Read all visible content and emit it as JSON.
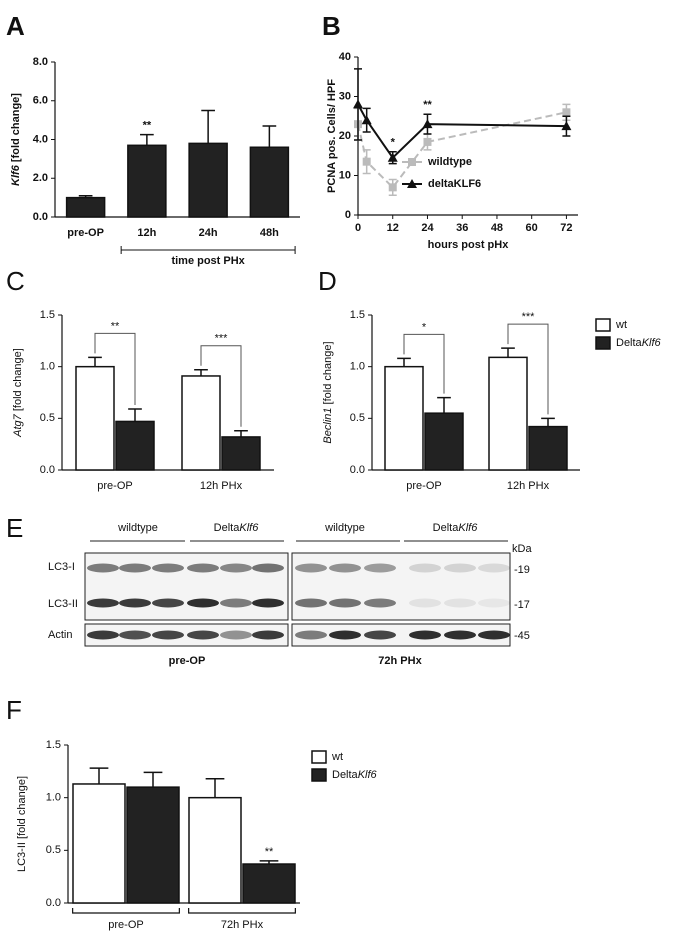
{
  "chart_data": [
    {
      "panel": "A",
      "type": "bar",
      "y_label": [
        "Klf6",
        " [fold change]"
      ],
      "categories": [
        "pre-OP",
        "12h",
        "24h",
        "48h"
      ],
      "values": [
        1.0,
        3.7,
        3.8,
        3.6
      ],
      "errors": [
        0.1,
        0.55,
        1.7,
        1.1
      ],
      "color": "#222222",
      "ylim": [
        0,
        8
      ],
      "yticks": [
        {
          "value": 0,
          "label": "0.0"
        },
        {
          "value": 2,
          "label": "2.0"
        },
        {
          "value": 4,
          "label": "4.0"
        },
        {
          "value": 6,
          "label": "6.0"
        },
        {
          "value": 8,
          "label": "8.0"
        }
      ],
      "annotations": [
        {
          "text": "**",
          "category": 1
        }
      ],
      "x_group_label": {
        "text": "time post PHx",
        "from": 1,
        "to": 3
      }
    },
    {
      "panel": "B",
      "type": "line",
      "y_label": "PCNA pos. Cells/ HPF",
      "x_label": "hours post pHx",
      "x": [
        0,
        3,
        12,
        24,
        72
      ],
      "xlim": [
        0,
        76
      ],
      "xticks": [
        0,
        12,
        24,
        36,
        48,
        60,
        72
      ],
      "ylim": [
        0,
        40
      ],
      "yticks": [
        0,
        10,
        20,
        30,
        40
      ],
      "series": [
        {
          "name": "wildtype",
          "color": "#bbbbbb",
          "dashed": true,
          "marker": "square",
          "values": [
            23,
            13.5,
            7,
            18.5,
            26
          ],
          "errors": [
            4,
            3,
            2,
            2,
            2
          ]
        },
        {
          "name": "deltaKLF6",
          "color": "#111111",
          "dashed": false,
          "marker": "triangle",
          "values": [
            28,
            24,
            14.5,
            23,
            22.5
          ],
          "errors": [
            9,
            3,
            1.5,
            2.5,
            2.5
          ]
        }
      ],
      "annotations": [
        {
          "text": "*",
          "x": 12
        },
        {
          "text": "**",
          "x": 24
        }
      ],
      "legend": "right"
    },
    {
      "panel": "C",
      "type": "bar",
      "y_label": [
        "Atg7",
        " [fold change]"
      ],
      "categories": [
        "pre-OP",
        "12h PHx"
      ],
      "series": [
        {
          "color": "#ffffff",
          "values": [
            1.0,
            0.91
          ],
          "errors": [
            0.09,
            0.06
          ]
        },
        {
          "color": "#222222",
          "values": [
            0.47,
            0.32
          ],
          "errors": [
            0.12,
            0.06
          ]
        }
      ],
      "ylim": [
        0,
        1.5
      ],
      "yticks": [
        {
          "value": 0,
          "label": "0.0"
        },
        {
          "value": 0.5,
          "label": "0.5"
        },
        {
          "value": 1,
          "label": "1.0"
        },
        {
          "value": 1.5,
          "label": "1.5"
        }
      ],
      "annotations": [
        {
          "text": "**",
          "category": 0
        },
        {
          "text": "***",
          "category": 1
        }
      ]
    },
    {
      "panel": "D",
      "type": "bar",
      "y_label": [
        "Beclin1",
        " [fold change]"
      ],
      "categories": [
        "pre-OP",
        "12h PHx"
      ],
      "series": [
        {
          "name": "wt",
          "color": "#ffffff",
          "values": [
            1.0,
            1.09
          ],
          "errors": [
            0.08,
            0.09
          ]
        },
        {
          "name": [
            "Delta",
            "Klf6"
          ],
          "color": "#222222",
          "values": [
            0.55,
            0.42
          ],
          "errors": [
            0.15,
            0.08
          ]
        }
      ],
      "ylim": [
        0,
        1.5
      ],
      "yticks": [
        {
          "value": 0,
          "label": "0.0"
        },
        {
          "value": 0.5,
          "label": "0.5"
        },
        {
          "value": 1,
          "label": "1.0"
        },
        {
          "value": 1.5,
          "label": "1.5"
        }
      ],
      "annotations": [
        {
          "text": "*",
          "category": 0
        },
        {
          "text": "***",
          "category": 1
        }
      ],
      "legend": "right"
    },
    {
      "panel": "F",
      "type": "bar",
      "y_label": "LC3-II [fold change]",
      "categories": [
        "pre-OP",
        "72h PHx"
      ],
      "series": [
        {
          "name": "wt",
          "color": "#ffffff",
          "values": [
            1.13,
            1.0
          ],
          "errors": [
            0.15,
            0.18
          ]
        },
        {
          "name": [
            "Delta",
            "Klf6"
          ],
          "color": "#222222",
          "values": [
            1.1,
            0.37
          ],
          "errors": [
            0.14,
            0.03
          ]
        }
      ],
      "ylim": [
        0,
        1.5
      ],
      "yticks": [
        {
          "value": 0,
          "label": "0.0"
        },
        {
          "value": 0.5,
          "label": "0.5"
        },
        {
          "value": 1,
          "label": "1.0"
        },
        {
          "value": 1.5,
          "label": "1.5"
        }
      ],
      "annotations": [
        {
          "text": "**",
          "category": 1,
          "series": 1
        }
      ],
      "category_brackets": true,
      "legend": "right"
    }
  ],
  "blot": {
    "panel": "E",
    "lane_groups": [
      "wildtype",
      [
        "Delta",
        "Klf6"
      ],
      "wildtype",
      [
        "Delta",
        "Klf6"
      ]
    ],
    "unit": "kDa",
    "rows": [
      "LC3-I",
      "LC3-II",
      "Actin"
    ],
    "markers": [
      "-19",
      "-17",
      "-45"
    ],
    "conditions": [
      "pre-OP",
      "72h PHx"
    ]
  }
}
